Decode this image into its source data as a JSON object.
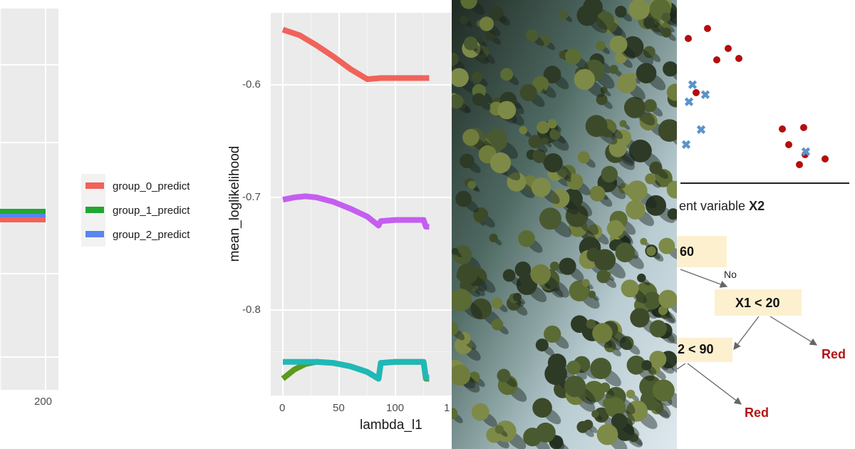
{
  "left_chart": {
    "x_tick": "200",
    "legend": [
      {
        "label": "group_0_predict",
        "color": "#f0635b"
      },
      {
        "label": "group_1_predict",
        "color": "#21a731"
      },
      {
        "label": "group_2_predict",
        "color": "#5985f0"
      }
    ]
  },
  "mid_chart": {
    "y_title": "mean_loglikelihood",
    "x_title": "lambda_l1",
    "y_ticks": [
      "-0.6",
      "-0.7",
      "-0.8"
    ],
    "x_ticks": [
      "0",
      "50",
      "100",
      "1"
    ],
    "colors": {
      "red": "#f0635b",
      "purple": "#c45ef0",
      "teal": "#1fb8b8",
      "green": "#5b9a1a"
    }
  },
  "chart_data": {
    "type": "line",
    "xlabel": "lambda_l1",
    "ylabel": "mean_loglikelihood",
    "xlim": [
      0,
      130
    ],
    "ylim": [
      -0.87,
      -0.55
    ],
    "series": [
      {
        "color": "#f0635b",
        "x": [
          0,
          15,
          30,
          45,
          60,
          75,
          87,
          100,
          130
        ],
        "y": [
          -0.551,
          -0.556,
          -0.565,
          -0.575,
          -0.586,
          -0.595,
          -0.594,
          -0.594,
          -0.594
        ]
      },
      {
        "color": "#c45ef0",
        "x": [
          0,
          10,
          20,
          30,
          45,
          60,
          75,
          85,
          87,
          100,
          125,
          127,
          130
        ],
        "y": [
          -0.702,
          -0.7,
          -0.699,
          -0.7,
          -0.704,
          -0.71,
          -0.717,
          -0.725,
          -0.721,
          -0.72,
          -0.72,
          -0.726,
          -0.726
        ]
      },
      {
        "color": "#5b9a1a",
        "x": [
          0,
          10,
          20,
          30,
          45,
          60,
          75,
          85,
          87,
          100,
          125,
          127,
          130
        ],
        "y": [
          -0.861,
          -0.853,
          -0.848,
          -0.846,
          -0.847,
          -0.85,
          -0.855,
          -0.861,
          -0.847,
          -0.846,
          -0.846,
          -0.861,
          -0.861
        ]
      },
      {
        "color": "#1fb8b8",
        "x": [
          0,
          10,
          20,
          30,
          45,
          60,
          75,
          85,
          87,
          100,
          125,
          127,
          130
        ],
        "y": [
          -0.846,
          -0.846,
          -0.846,
          -0.846,
          -0.847,
          -0.85,
          -0.855,
          -0.861,
          -0.847,
          -0.846,
          -0.846,
          -0.86,
          -0.86
        ]
      }
    ]
  },
  "decision_tree": {
    "x2_label_prefix": "ent variable ",
    "x2_label_bold": "X2",
    "node_top": "60",
    "edge_no": "No",
    "node_x1": "X1 < 20",
    "node_x2": "2 < 90",
    "leaf_right": "Red",
    "leaf_bottom": "Red",
    "colors": {
      "red_point": "#b50d0d",
      "blue_x": "#5a94c8",
      "node_fill": "#fdf0cf",
      "leaf_text": "#b01616"
    }
  }
}
